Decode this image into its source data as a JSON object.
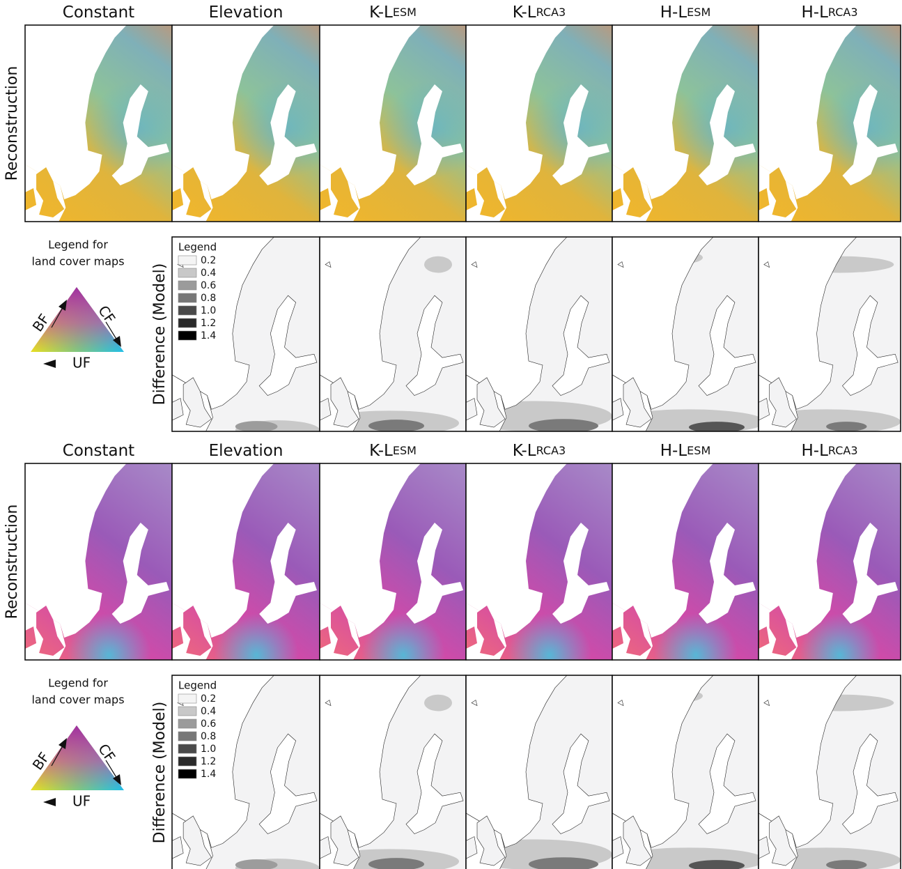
{
  "sections": [
    {
      "headers": [
        {
          "text": "Constant"
        },
        {
          "text": "Elevation"
        },
        {
          "text": "K-L",
          "sub": "ESM"
        },
        {
          "text": "K-L",
          "sub": "RCA3"
        },
        {
          "text": "H-L",
          "sub": "ESM"
        },
        {
          "text": "H-L",
          "sub": "RCA3"
        }
      ],
      "reconstruction_label": "Reconstruction",
      "difference_label": "Difference (Model)",
      "land_cover_legend": {
        "title": [
          "Legend for",
          "land cover maps"
        ],
        "labels": [
          "BF",
          "CF",
          "UF"
        ]
      },
      "difference_legend": {
        "title": "Legend",
        "levels": [
          "0.2",
          "0.4",
          "0.6",
          "0.8",
          "1.0",
          "1.2",
          "1.4"
        ]
      }
    },
    {
      "headers": [
        {
          "text": "Constant"
        },
        {
          "text": "Elevation"
        },
        {
          "text": "K-L",
          "sub": "ESM"
        },
        {
          "text": "K-L",
          "sub": "RCA3"
        },
        {
          "text": "H-L",
          "sub": "ESM"
        },
        {
          "text": "H-L",
          "sub": "RCA3"
        }
      ],
      "reconstruction_label": "Reconstruction",
      "difference_label": "Difference (Model)",
      "land_cover_legend": {
        "title": [
          "Legend for",
          "land cover maps"
        ],
        "labels": [
          "BF",
          "CF",
          "UF"
        ]
      },
      "difference_legend": {
        "title": "Legend",
        "levels": [
          "0.2",
          "0.4",
          "0.6",
          "0.8",
          "1.0",
          "1.2",
          "1.4"
        ]
      }
    }
  ]
}
